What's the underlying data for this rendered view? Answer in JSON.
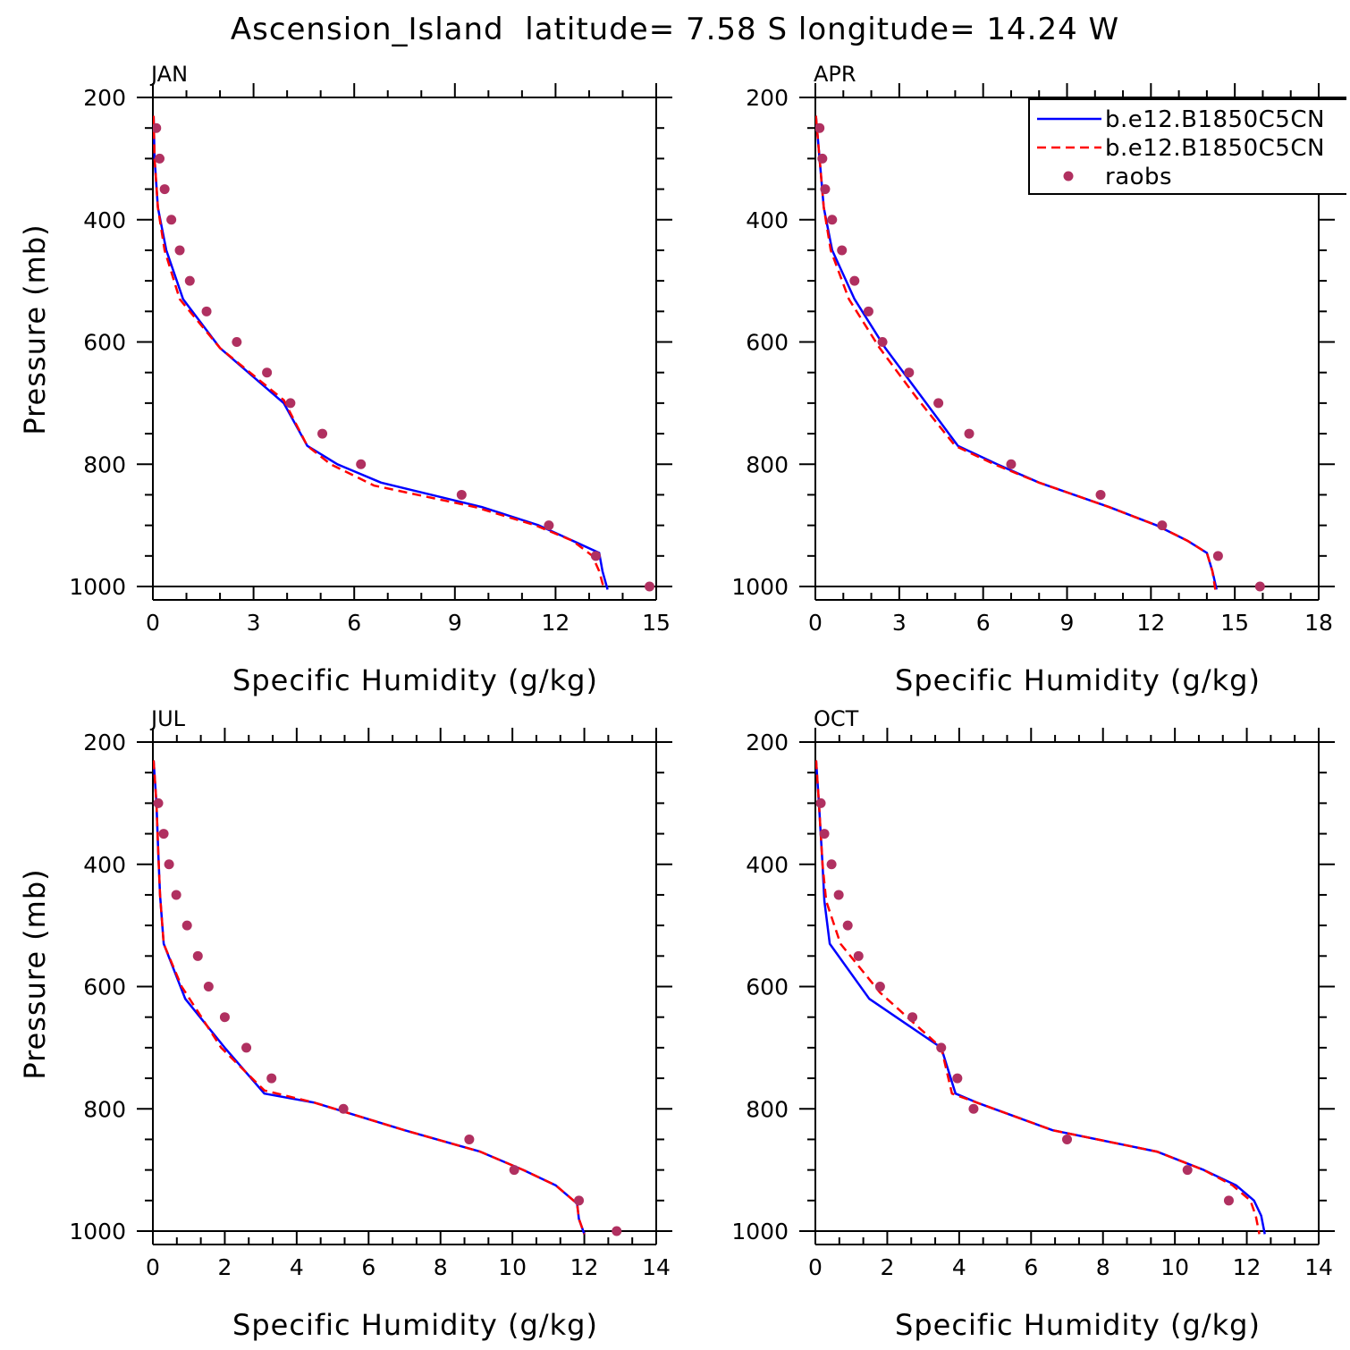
{
  "title": "Ascension_Island  latitude= 7.58 S longitude= 14.24 W",
  "legend": [
    {
      "label": "b.e12.B1850C5CN",
      "color": "#0000ff",
      "style": "solid"
    },
    {
      "label": "b.e12.B1850C5CN",
      "color": "#ff0000",
      "style": "dashed"
    },
    {
      "label": "raobs",
      "color": "#b03060",
      "style": "marker"
    }
  ],
  "chart_data": [
    {
      "type": "line",
      "panel": "JAN",
      "xlabel": "Specific Humidity (g/kg)",
      "ylabel": "Pressure (mb)",
      "xlim": [
        0,
        15
      ],
      "ylim": [
        200,
        1000
      ],
      "y_reversed": true,
      "x_ticks": [
        0,
        3,
        6,
        9,
        12,
        15
      ],
      "y_ticks": [
        200,
        400,
        600,
        800,
        1000
      ],
      "grid": false,
      "series": [
        {
          "color": "#0000ff",
          "style": "solid",
          "points": [
            [
              0.02,
              230
            ],
            [
              0.05,
              300
            ],
            [
              0.15,
              380
            ],
            [
              0.4,
              450
            ],
            [
              0.9,
              530
            ],
            [
              2.0,
              610
            ],
            [
              3.9,
              700
            ],
            [
              4.6,
              770
            ],
            [
              5.5,
              800
            ],
            [
              6.8,
              830
            ],
            [
              9.8,
              870
            ],
            [
              11.5,
              900
            ],
            [
              12.5,
              925
            ],
            [
              13.3,
              945
            ],
            [
              13.4,
              975
            ],
            [
              13.55,
              1005
            ]
          ]
        },
        {
          "color": "#ff0000",
          "style": "dashed",
          "points": [
            [
              0.02,
              230
            ],
            [
              0.05,
              300
            ],
            [
              0.15,
              380
            ],
            [
              0.35,
              450
            ],
            [
              0.8,
              530
            ],
            [
              2.0,
              610
            ],
            [
              3.9,
              695
            ],
            [
              4.6,
              770
            ],
            [
              5.3,
              800
            ],
            [
              6.6,
              835
            ],
            [
              9.6,
              870
            ],
            [
              11.4,
              900
            ],
            [
              12.5,
              925
            ],
            [
              13.1,
              950
            ],
            [
              13.3,
              975
            ],
            [
              13.45,
              1005
            ]
          ]
        },
        {
          "color": "#b03060",
          "style": "marker",
          "points": [
            [
              0.1,
              250
            ],
            [
              0.2,
              300
            ],
            [
              0.35,
              350
            ],
            [
              0.55,
              400
            ],
            [
              0.8,
              450
            ],
            [
              1.1,
              500
            ],
            [
              1.6,
              550
            ],
            [
              2.5,
              600
            ],
            [
              3.4,
              650
            ],
            [
              4.1,
              700
            ],
            [
              5.05,
              750
            ],
            [
              6.2,
              800
            ],
            [
              9.2,
              850
            ],
            [
              11.8,
              900
            ],
            [
              13.2,
              950
            ],
            [
              14.8,
              1000
            ]
          ]
        }
      ]
    },
    {
      "type": "line",
      "panel": "APR",
      "xlabel": "Specific Humidity (g/kg)",
      "ylabel": "",
      "xlim": [
        0,
        18
      ],
      "ylim": [
        200,
        1000
      ],
      "y_reversed": true,
      "x_ticks": [
        0,
        3,
        6,
        9,
        12,
        15,
        18
      ],
      "y_ticks": [
        200,
        400,
        600,
        800,
        1000
      ],
      "grid": false,
      "legend_position": "top-right",
      "series": [
        {
          "color": "#0000ff",
          "style": "solid",
          "points": [
            [
              0.02,
              230
            ],
            [
              0.15,
              300
            ],
            [
              0.3,
              380
            ],
            [
              0.6,
              450
            ],
            [
              1.4,
              530
            ],
            [
              2.5,
              610
            ],
            [
              3.8,
              690
            ],
            [
              5.1,
              770
            ],
            [
              6.5,
              800
            ],
            [
              8.0,
              830
            ],
            [
              10.5,
              870
            ],
            [
              12.2,
              900
            ],
            [
              13.3,
              925
            ],
            [
              14.0,
              945
            ],
            [
              14.2,
              975
            ],
            [
              14.35,
              1005
            ]
          ]
        },
        {
          "color": "#ff0000",
          "style": "dashed",
          "points": [
            [
              0.02,
              230
            ],
            [
              0.15,
              300
            ],
            [
              0.3,
              380
            ],
            [
              0.55,
              450
            ],
            [
              1.2,
              530
            ],
            [
              2.3,
              610
            ],
            [
              3.6,
              690
            ],
            [
              5.0,
              770
            ],
            [
              6.4,
              800
            ],
            [
              8.0,
              830
            ],
            [
              10.5,
              870
            ],
            [
              12.2,
              900
            ],
            [
              13.3,
              925
            ],
            [
              14.0,
              945
            ],
            [
              14.2,
              975
            ],
            [
              14.3,
              1005
            ]
          ]
        },
        {
          "color": "#b03060",
          "style": "marker",
          "points": [
            [
              0.15,
              250
            ],
            [
              0.25,
              300
            ],
            [
              0.35,
              350
            ],
            [
              0.6,
              400
            ],
            [
              0.95,
              450
            ],
            [
              1.4,
              500
            ],
            [
              1.9,
              550
            ],
            [
              2.4,
              600
            ],
            [
              3.35,
              650
            ],
            [
              4.4,
              700
            ],
            [
              5.5,
              750
            ],
            [
              7.0,
              800
            ],
            [
              10.2,
              850
            ],
            [
              12.4,
              900
            ],
            [
              14.4,
              950
            ],
            [
              15.9,
              1000
            ]
          ]
        }
      ]
    },
    {
      "type": "line",
      "panel": "JUL",
      "xlabel": "Specific Humidity (g/kg)",
      "ylabel": "Pressure (mb)",
      "xlim": [
        0,
        14
      ],
      "ylim": [
        200,
        1000
      ],
      "y_reversed": true,
      "x_ticks": [
        0,
        2,
        4,
        6,
        8,
        10,
        12,
        14
      ],
      "y_ticks": [
        200,
        400,
        600,
        800,
        1000
      ],
      "grid": false,
      "series": [
        {
          "color": "#0000ff",
          "style": "solid",
          "points": [
            [
              0.02,
              230
            ],
            [
              0.1,
              300
            ],
            [
              0.15,
              380
            ],
            [
              0.2,
              450
            ],
            [
              0.3,
              530
            ],
            [
              0.9,
              620
            ],
            [
              2.0,
              700
            ],
            [
              3.1,
              775
            ],
            [
              4.5,
              790
            ],
            [
              7.0,
              835
            ],
            [
              9.1,
              870
            ],
            [
              10.3,
              900
            ],
            [
              11.2,
              925
            ],
            [
              11.8,
              955
            ],
            [
              11.85,
              980
            ],
            [
              12.0,
              1005
            ]
          ]
        },
        {
          "color": "#ff0000",
          "style": "dashed",
          "points": [
            [
              0.02,
              230
            ],
            [
              0.1,
              300
            ],
            [
              0.15,
              380
            ],
            [
              0.2,
              450
            ],
            [
              0.3,
              530
            ],
            [
              0.8,
              600
            ],
            [
              1.9,
              700
            ],
            [
              3.1,
              770
            ],
            [
              4.5,
              790
            ],
            [
              7.0,
              835
            ],
            [
              9.1,
              870
            ],
            [
              10.3,
              900
            ],
            [
              11.2,
              925
            ],
            [
              11.8,
              955
            ],
            [
              11.85,
              980
            ],
            [
              12.0,
              1005
            ]
          ]
        },
        {
          "color": "#b03060",
          "style": "marker",
          "points": [
            [
              0.15,
              300
            ],
            [
              0.3,
              350
            ],
            [
              0.45,
              400
            ],
            [
              0.65,
              450
            ],
            [
              0.95,
              500
            ],
            [
              1.25,
              550
            ],
            [
              1.55,
              600
            ],
            [
              2.0,
              650
            ],
            [
              2.6,
              700
            ],
            [
              3.3,
              750
            ],
            [
              5.3,
              800
            ],
            [
              8.8,
              850
            ],
            [
              10.05,
              900
            ],
            [
              11.85,
              950
            ],
            [
              12.9,
              1000
            ]
          ]
        }
      ]
    },
    {
      "type": "line",
      "panel": "OCT",
      "xlabel": "Specific Humidity (g/kg)",
      "ylabel": "",
      "xlim": [
        0,
        14
      ],
      "ylim": [
        200,
        1000
      ],
      "y_reversed": true,
      "x_ticks": [
        0,
        2,
        4,
        6,
        8,
        10,
        12,
        14
      ],
      "y_ticks": [
        200,
        400,
        600,
        800,
        1000
      ],
      "grid": false,
      "series": [
        {
          "color": "#0000ff",
          "style": "solid",
          "points": [
            [
              0.02,
              230
            ],
            [
              0.1,
              300
            ],
            [
              0.2,
              400
            ],
            [
              0.25,
              460
            ],
            [
              0.4,
              530
            ],
            [
              1.5,
              620
            ],
            [
              3.5,
              700
            ],
            [
              3.9,
              775
            ],
            [
              4.5,
              790
            ],
            [
              6.6,
              835
            ],
            [
              9.5,
              870
            ],
            [
              10.8,
              900
            ],
            [
              11.7,
              925
            ],
            [
              12.2,
              950
            ],
            [
              12.4,
              975
            ],
            [
              12.5,
              1005
            ]
          ]
        },
        {
          "color": "#ff0000",
          "style": "dashed",
          "points": [
            [
              0.02,
              230
            ],
            [
              0.1,
              300
            ],
            [
              0.2,
              400
            ],
            [
              0.3,
              460
            ],
            [
              0.7,
              530
            ],
            [
              1.8,
              610
            ],
            [
              3.5,
              700
            ],
            [
              3.8,
              775
            ],
            [
              4.5,
              790
            ],
            [
              6.6,
              835
            ],
            [
              9.5,
              870
            ],
            [
              10.8,
              900
            ],
            [
              11.6,
              925
            ],
            [
              12.1,
              950
            ],
            [
              12.25,
              975
            ],
            [
              12.35,
              1005
            ]
          ]
        },
        {
          "color": "#b03060",
          "style": "marker",
          "points": [
            [
              0.15,
              300
            ],
            [
              0.25,
              350
            ],
            [
              0.45,
              400
            ],
            [
              0.65,
              450
            ],
            [
              0.9,
              500
            ],
            [
              1.2,
              550
            ],
            [
              1.8,
              600
            ],
            [
              2.7,
              650
            ],
            [
              3.5,
              700
            ],
            [
              3.95,
              750
            ],
            [
              4.4,
              800
            ],
            [
              7.0,
              850
            ],
            [
              10.35,
              900
            ],
            [
              11.5,
              950
            ]
          ]
        }
      ]
    }
  ]
}
